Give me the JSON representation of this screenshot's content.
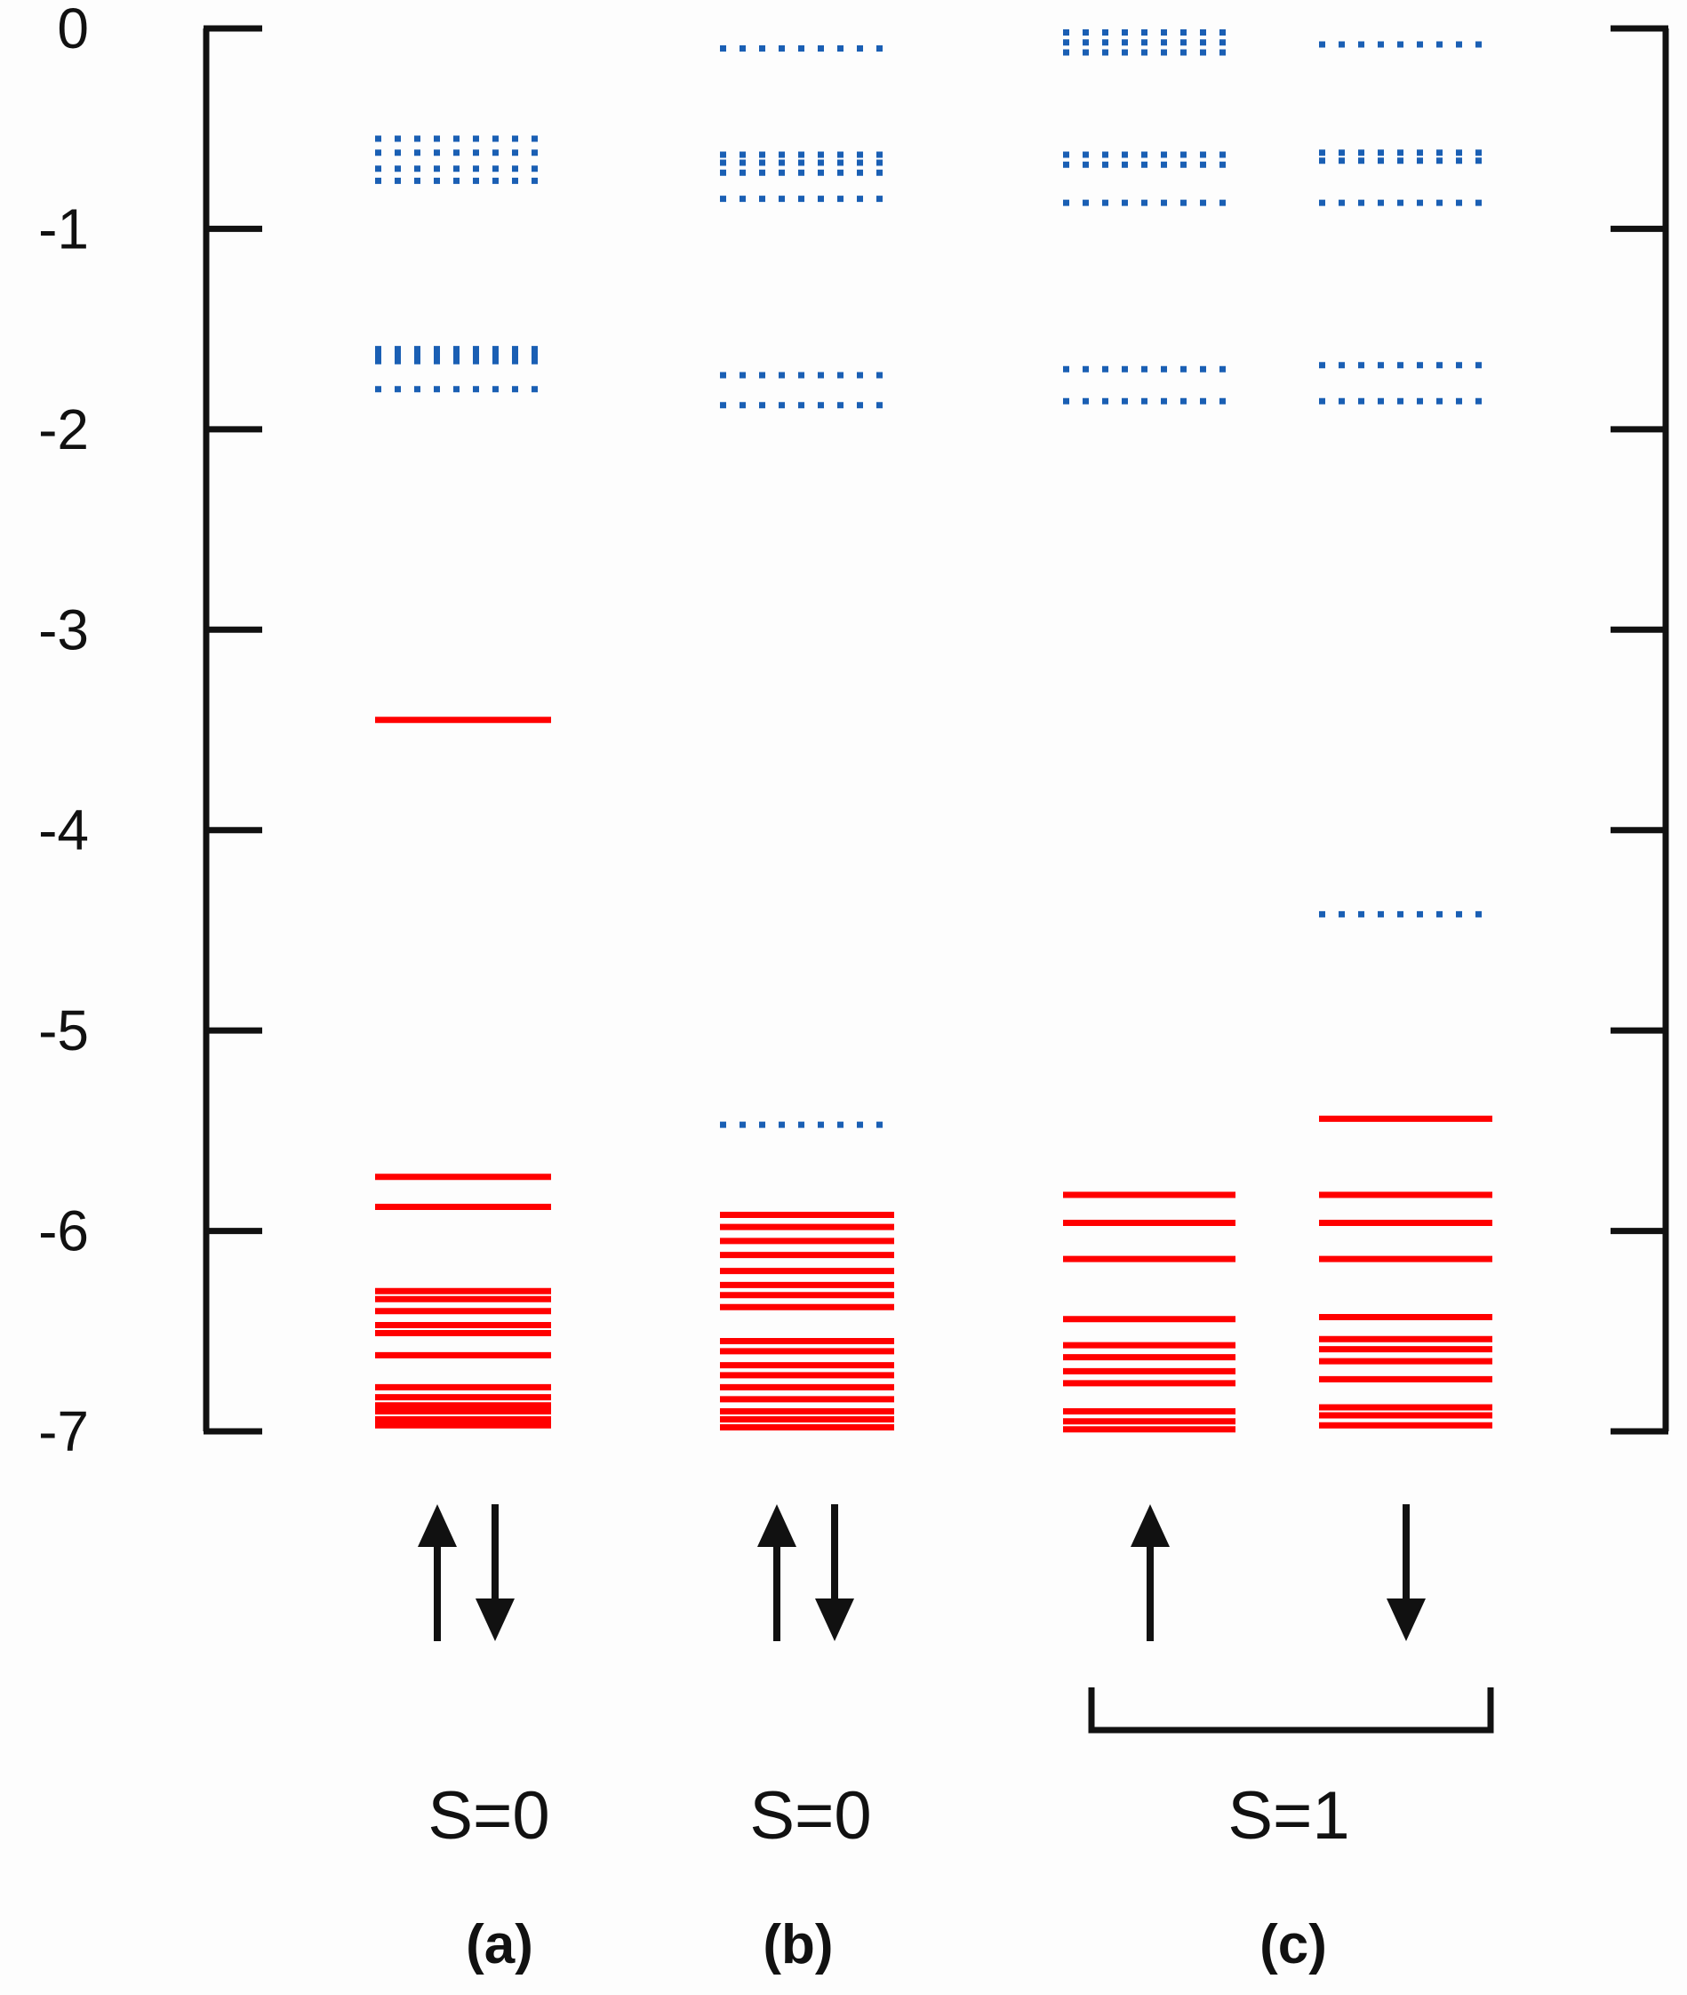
{
  "chart_data": {
    "type": "energy-level diagram",
    "ylim": [
      -7,
      0
    ],
    "yticks": [
      0,
      -1,
      -2,
      -3,
      -4,
      -5,
      -6,
      -7
    ],
    "ytick_labels": [
      "0",
      "-1",
      "-2",
      "-3",
      "-4",
      "-5",
      "-6",
      "-7"
    ],
    "colors": {
      "occupied": "#ff0000",
      "unoccupied": "#1a5fb4",
      "axis": "#111111"
    },
    "columns": [
      {
        "id": "a-pair",
        "panel": "a",
        "occupied": [
          -3.45,
          -5.73,
          -5.88,
          -6.3,
          -6.34,
          -6.4,
          -6.47,
          -6.51,
          -6.62,
          -6.78,
          -6.83,
          -6.87,
          -6.9,
          -6.94,
          -6.97
        ],
        "unoccupied": [
          -0.55,
          -0.62,
          -0.7,
          -0.76,
          -1.6,
          -1.63,
          -1.66,
          -1.8
        ]
      },
      {
        "id": "b-pair",
        "panel": "b",
        "occupied": [
          -5.92,
          -5.98,
          -6.05,
          -6.12,
          -6.2,
          -6.27,
          -6.32,
          -6.38,
          -6.55,
          -6.6,
          -6.67,
          -6.72,
          -6.78,
          -6.84,
          -6.9,
          -6.94,
          -6.98
        ],
        "unoccupied": [
          -0.1,
          -0.63,
          -0.67,
          -0.72,
          -0.85,
          -1.73,
          -1.88,
          -5.47
        ]
      },
      {
        "id": "c-up",
        "panel": "c",
        "occupied": [
          -5.82,
          -5.96,
          -6.14,
          -6.44,
          -6.57,
          -6.63,
          -6.7,
          -6.76,
          -6.9,
          -6.95,
          -6.99
        ],
        "unoccupied": [
          -0.02,
          -0.07,
          -0.12,
          -0.63,
          -0.68,
          -0.87,
          -1.7,
          -1.86
        ]
      },
      {
        "id": "c-down",
        "panel": "c",
        "occupied": [
          -5.44,
          -5.82,
          -5.96,
          -6.14,
          -6.43,
          -6.54,
          -6.59,
          -6.65,
          -6.74,
          -6.88,
          -6.92,
          -6.97
        ],
        "unoccupied": [
          -0.08,
          -0.62,
          -0.66,
          -0.87,
          -1.68,
          -1.86,
          -4.42
        ]
      }
    ],
    "spin_arrows": [
      {
        "column": "a-pair",
        "arrows": [
          "up",
          "down"
        ]
      },
      {
        "column": "b-pair",
        "arrows": [
          "up",
          "down"
        ]
      },
      {
        "column": "c-up",
        "arrows": [
          "up"
        ]
      },
      {
        "column": "c-down",
        "arrows": [
          "down"
        ]
      }
    ]
  },
  "labels": {
    "spin_a": "S=0",
    "spin_b": "S=0",
    "spin_c": "S=1",
    "panel_a": "(a)",
    "panel_b": "(b)",
    "panel_c": "(c)"
  }
}
